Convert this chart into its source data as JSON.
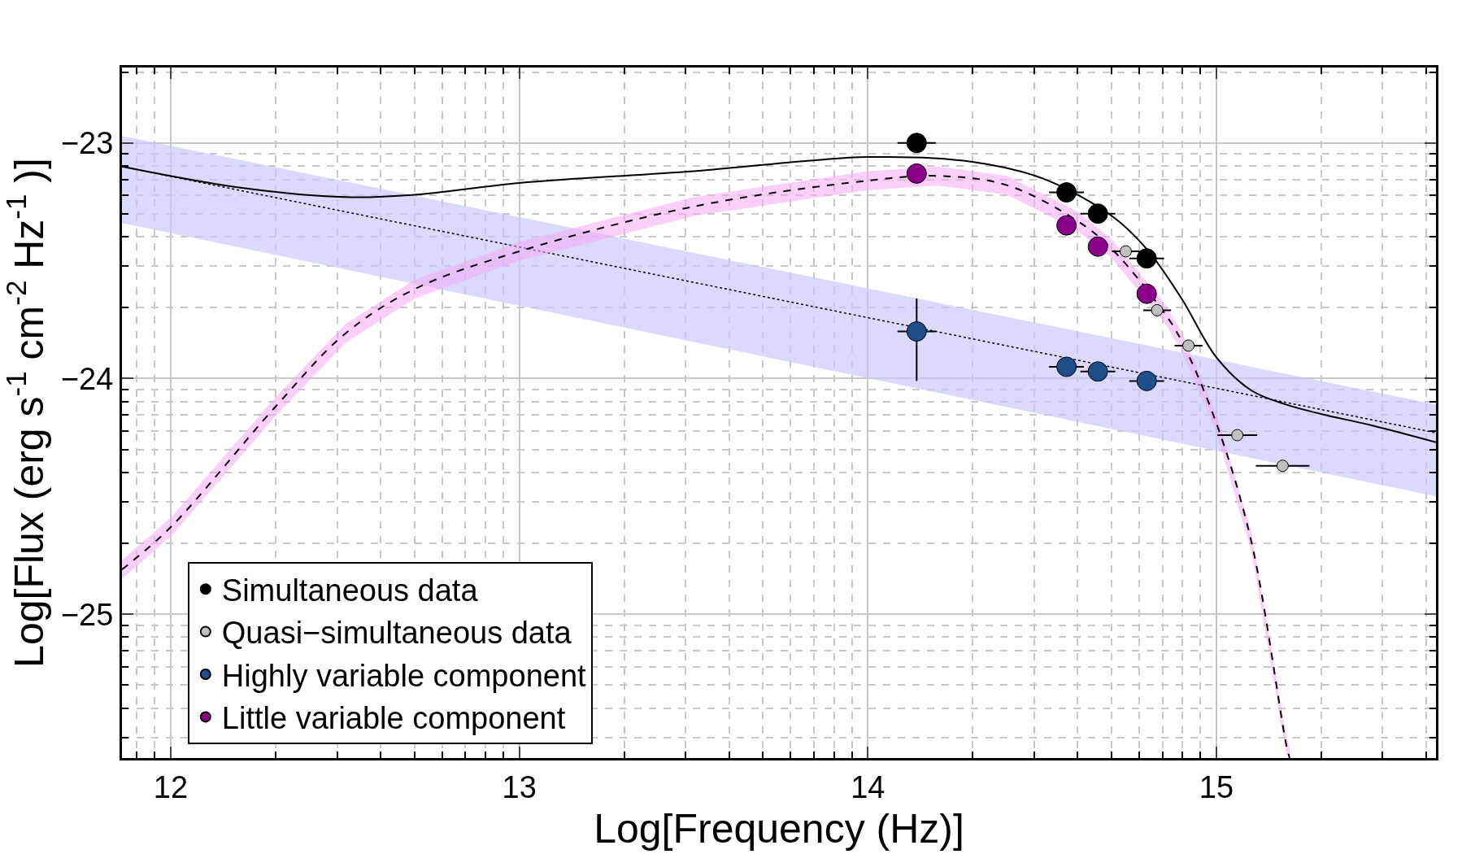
{
  "chart_data": {
    "type": "scatter",
    "xlabel": "Log[Frequency (Hz)]",
    "ylabel": "Log[Flux (erg s$^{-1}$ cm$^{-2}$ Hz$^{-1}$ )]",
    "xlim": [
      11.86,
      15.63
    ],
    "ylim": [
      -25.61,
      -22.68
    ],
    "xticks": [
      12,
      13,
      14,
      15
    ],
    "yticks": [
      {
        "value": -25,
        "label": "−25"
      },
      {
        "value": -24,
        "label": "−24"
      },
      {
        "value": -23,
        "label": "−23"
      }
    ],
    "grid": true,
    "legend": "bottom left",
    "marker": "circle",
    "series": [
      {
        "type": "line",
        "color": "#000000",
        "marker": "none",
        "line_style": "dotted",
        "x": [
          11.86,
          15.63
        ],
        "values": [
          -23.1,
          -24.23
        ],
        "lower": [
          -23.34,
          -24.5
        ],
        "upper": [
          -22.97,
          -24.11
        ]
      },
      {
        "type": "line",
        "color": "#000000",
        "marker": "none",
        "line_style": "dashed",
        "x": [
          11.86,
          12.0,
          12.3,
          12.5,
          12.7,
          13.0,
          13.5,
          14.0,
          14.2,
          14.4,
          14.6,
          14.7,
          14.85,
          14.9,
          15.0,
          15.1,
          15.2,
          15.21
        ],
        "values": [
          -24.81,
          -24.63,
          -24.12,
          -23.81,
          -23.62,
          -23.46,
          -23.27,
          -23.16,
          -23.14,
          -23.18,
          -23.33,
          -23.45,
          -23.72,
          -23.84,
          -24.19,
          -24.69,
          -25.55,
          -25.61
        ],
        "lower": [
          -24.85,
          -24.67,
          -24.16,
          -23.85,
          -23.66,
          -23.5,
          -23.31,
          -23.2,
          -23.18,
          -23.22,
          -23.37,
          -23.49,
          -23.76,
          -23.88,
          -24.23,
          -24.73,
          -25.59,
          -25.61
        ],
        "upper": [
          -24.77,
          -24.59,
          -24.08,
          -23.77,
          -23.58,
          -23.42,
          -23.23,
          -23.12,
          -23.1,
          -23.14,
          -23.29,
          -23.41,
          -23.68,
          -23.8,
          -24.15,
          -24.65,
          -25.51,
          -25.57
        ]
      },
      {
        "type": "line",
        "color": "#000000",
        "marker": "none",
        "line_style": "solid",
        "x": [
          11.86,
          12.2,
          12.5,
          12.7,
          13.0,
          13.5,
          14.0,
          14.3,
          14.5,
          14.7,
          14.8,
          14.9,
          15.0,
          15.1,
          15.2,
          15.3,
          15.45,
          15.63
        ],
        "values": [
          -23.1,
          -23.19,
          -23.23,
          -23.22,
          -23.17,
          -23.12,
          -23.06,
          -23.08,
          -23.15,
          -23.31,
          -23.45,
          -23.66,
          -23.91,
          -24.05,
          -24.11,
          -24.15,
          -24.2,
          -24.27
        ]
      },
      {
        "name": "Simultaneous data",
        "color": "#000000",
        "x": [
          14.14,
          14.57,
          14.66,
          14.8
        ],
        "values": [
          -23.0,
          -23.21,
          -23.3,
          -23.49
        ],
        "xerrors": [
          0.055,
          0.05,
          0.05,
          0.05
        ]
      },
      {
        "name": "Quasi−simultaneous data",
        "color": "#c0c0c0",
        "x": [
          14.74,
          14.83,
          14.92,
          15.06,
          15.19
        ],
        "values": [
          -23.46,
          -23.71,
          -23.86,
          -24.24,
          -24.37
        ],
        "xerrors": [
          0.04,
          0.04,
          0.04,
          0.057,
          0.077
        ]
      },
      {
        "name": "Highly variable component",
        "color": "#1f4e8c",
        "x": [
          14.14,
          14.57,
          14.66,
          14.8
        ],
        "values": [
          -23.8,
          -23.95,
          -23.97,
          -24.01
        ],
        "xerrors": [
          0.055,
          0.05,
          0.05,
          0.05
        ],
        "errors": [
          [
            -24.01,
            -23.66
          ],
          null,
          null,
          null
        ]
      },
      {
        "name": "Little variable component",
        "color": "#8b008b",
        "x": [
          14.14,
          14.57,
          14.66,
          14.8
        ],
        "values": [
          -23.13,
          -23.35,
          -23.44,
          -23.64
        ]
      }
    ]
  }
}
